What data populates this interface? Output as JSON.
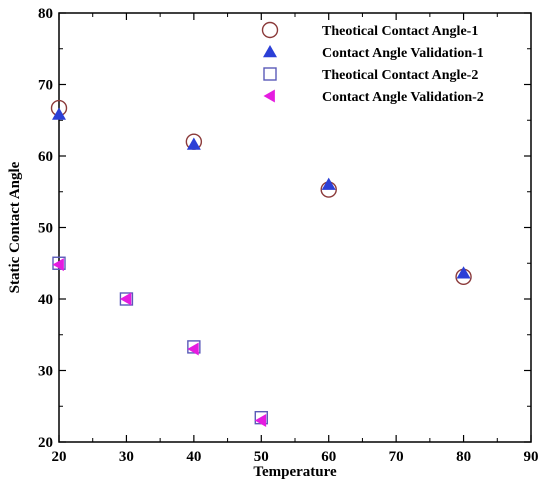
{
  "chart_data": {
    "type": "scatter",
    "title": "",
    "xlabel": "Temperature",
    "ylabel": "Static Contact Angle",
    "xlim": [
      20,
      90
    ],
    "ylim": [
      20,
      80
    ],
    "xticks": [
      20,
      30,
      40,
      50,
      60,
      70,
      80,
      90
    ],
    "yticks": [
      20,
      30,
      40,
      50,
      60,
      70,
      80
    ],
    "grid": false,
    "legend_position": "top-right",
    "series": [
      {
        "name": "Theotical Contact Angle-1",
        "marker": "circle-open",
        "color": "#8b3a3a",
        "points": [
          {
            "x": 20,
            "y": 66.7
          },
          {
            "x": 40,
            "y": 62.0
          },
          {
            "x": 60,
            "y": 55.3
          },
          {
            "x": 80,
            "y": 43.1
          }
        ]
      },
      {
        "name": "Contact Angle Validation-1",
        "marker": "triangle-up-filled",
        "color": "#2b3fd6",
        "points": [
          {
            "x": 20,
            "y": 65.8
          },
          {
            "x": 40,
            "y": 61.6
          },
          {
            "x": 60,
            "y": 56.0
          },
          {
            "x": 80,
            "y": 43.6
          }
        ]
      },
      {
        "name": "Theotical Contact Angle-2",
        "marker": "square-open",
        "color": "#5a5ab8",
        "points": [
          {
            "x": 20,
            "y": 45.0
          },
          {
            "x": 30,
            "y": 40.0
          },
          {
            "x": 40,
            "y": 33.3
          },
          {
            "x": 50,
            "y": 23.4
          }
        ]
      },
      {
        "name": "Contact Angle Validation-2",
        "marker": "triangle-left-filled",
        "color": "#e51ce0",
        "points": [
          {
            "x": 20,
            "y": 44.8
          },
          {
            "x": 30,
            "y": 40.0
          },
          {
            "x": 40,
            "y": 33.0
          },
          {
            "x": 50,
            "y": 23.0
          }
        ]
      }
    ]
  }
}
